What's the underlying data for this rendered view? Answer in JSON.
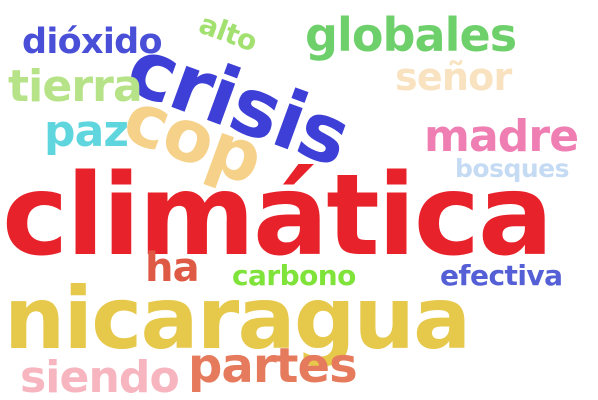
{
  "words": [
    {
      "text": "climática",
      "color": "#e8222a"
    },
    {
      "text": "nicaragua",
      "color": "#e6c84a"
    },
    {
      "text": "crisis",
      "color": "#3e3fd6"
    },
    {
      "text": "cop",
      "color": "#f6d189"
    },
    {
      "text": "globales",
      "color": "#6ed06a"
    },
    {
      "text": "dióxido",
      "color": "#4a4fd8"
    },
    {
      "text": "alto",
      "color": "#a2e070"
    },
    {
      "text": "tierra",
      "color": "#b6e387"
    },
    {
      "text": "señor",
      "color": "#f9e2bf"
    },
    {
      "text": "paz",
      "color": "#5fd5dd"
    },
    {
      "text": "madre",
      "color": "#ef7fb3"
    },
    {
      "text": "bosques",
      "color": "#c4dbf3"
    },
    {
      "text": "ha",
      "color": "#df5a45"
    },
    {
      "text": "carbono",
      "color": "#7fe33a"
    },
    {
      "text": "efectiva",
      "color": "#5660d6"
    },
    {
      "text": "siendo",
      "color": "#f7b5bf"
    },
    {
      "text": "partes",
      "color": "#e57b5c"
    }
  ]
}
